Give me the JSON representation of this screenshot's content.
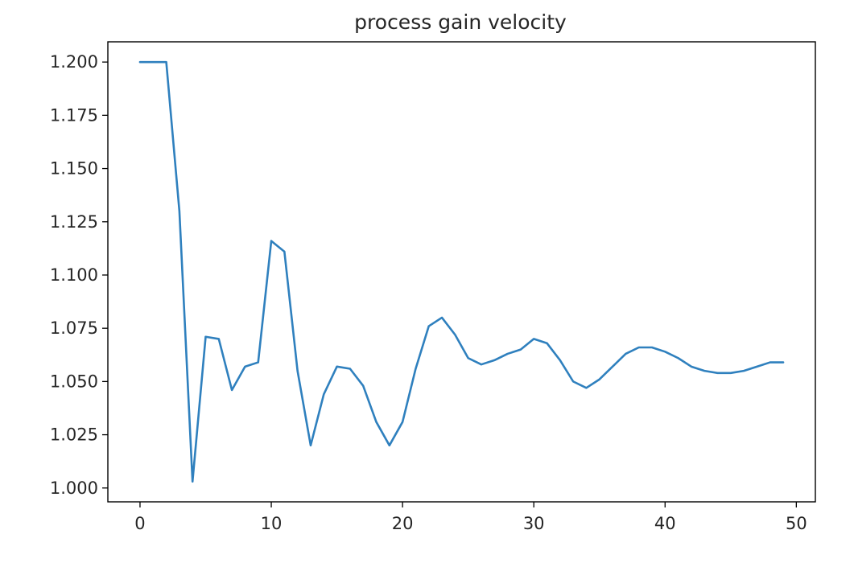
{
  "chart_data": {
    "type": "line",
    "title": "process gain velocity",
    "xlabel": "",
    "ylabel": "",
    "xlim": [
      -2.45,
      51.45
    ],
    "ylim": [
      0.9935,
      1.2095
    ],
    "xticks": [
      0,
      10,
      20,
      30,
      40,
      50
    ],
    "yticks": [
      1.0,
      1.025,
      1.05,
      1.075,
      1.1,
      1.125,
      1.15,
      1.175,
      1.2
    ],
    "ytick_labels": [
      "1.000",
      "1.025",
      "1.050",
      "1.075",
      "1.100",
      "1.125",
      "1.150",
      "1.175",
      "1.200"
    ],
    "grid": false,
    "line_color": "#2f80be",
    "series": [
      {
        "x": [
          0,
          1,
          2,
          3,
          4,
          5,
          6,
          7,
          8,
          9,
          10,
          11,
          12,
          13,
          14,
          15,
          16,
          17,
          18,
          19,
          20,
          21,
          22,
          23,
          24,
          25,
          26,
          27,
          28,
          29,
          30,
          31,
          32,
          33,
          34,
          35,
          36,
          37,
          38,
          39,
          40,
          41,
          42,
          43,
          44,
          45,
          46,
          47,
          48,
          49
        ],
        "values": [
          1.2,
          1.2,
          1.2,
          1.13,
          1.003,
          1.071,
          1.07,
          1.046,
          1.057,
          1.059,
          1.116,
          1.111,
          1.055,
          1.02,
          1.044,
          1.057,
          1.056,
          1.048,
          1.031,
          1.02,
          1.031,
          1.056,
          1.076,
          1.08,
          1.072,
          1.061,
          1.058,
          1.06,
          1.063,
          1.065,
          1.07,
          1.068,
          1.06,
          1.05,
          1.047,
          1.051,
          1.057,
          1.063,
          1.066,
          1.066,
          1.064,
          1.061,
          1.057,
          1.055,
          1.054,
          1.054,
          1.055,
          1.057,
          1.059,
          1.059
        ]
      }
    ]
  }
}
